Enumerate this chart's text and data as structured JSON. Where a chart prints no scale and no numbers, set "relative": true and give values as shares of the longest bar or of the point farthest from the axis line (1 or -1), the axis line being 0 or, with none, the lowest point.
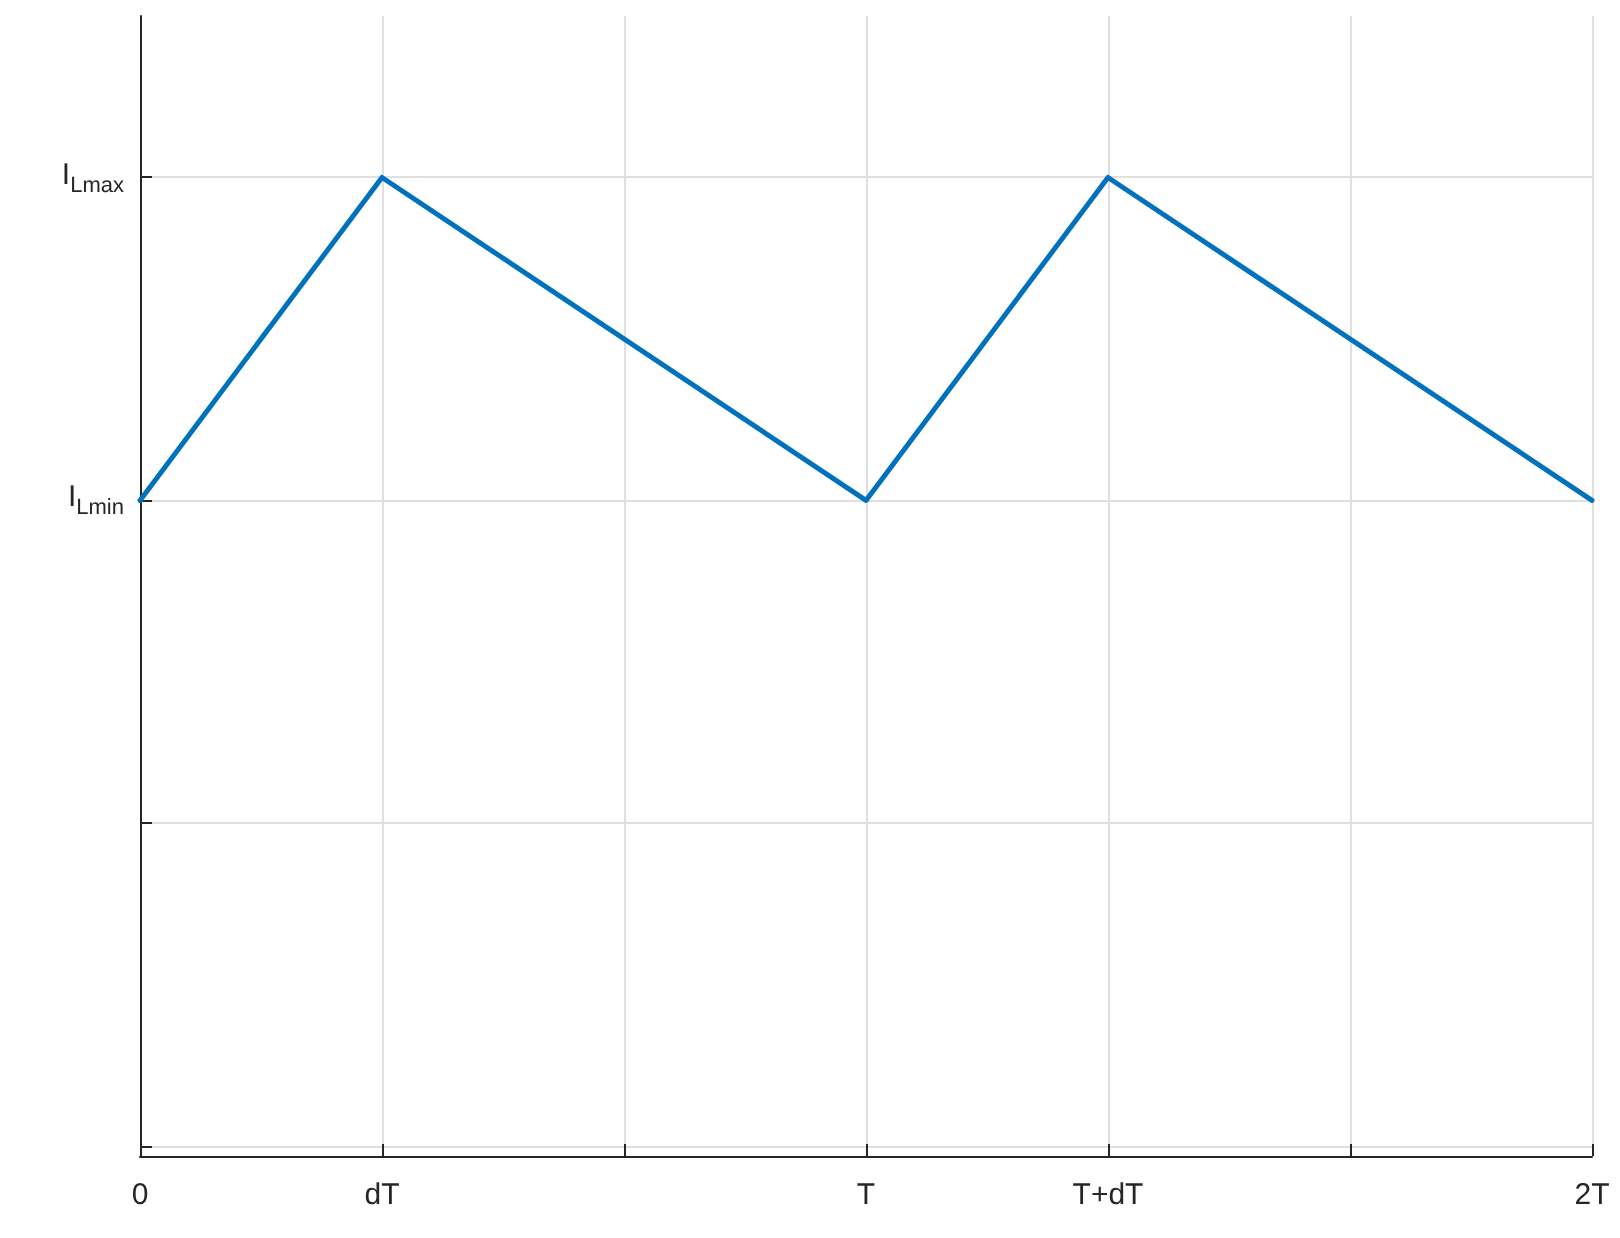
{
  "chart_data": {
    "type": "line",
    "relative": true,
    "categories": [
      "0",
      "dT",
      null,
      "T",
      "T+dT",
      null,
      "2T"
    ],
    "series": [
      {
        "color": "#0072bd",
        "values": [
          0.67,
          1,
          null,
          0.67,
          1,
          null,
          0.67
        ]
      }
    ],
    "annotations": [
      "I$_{Lmin}$",
      "I$_{Lmax}$"
    ],
    "grid": true,
    "marker": "none",
    "line_style": "solid"
  }
}
